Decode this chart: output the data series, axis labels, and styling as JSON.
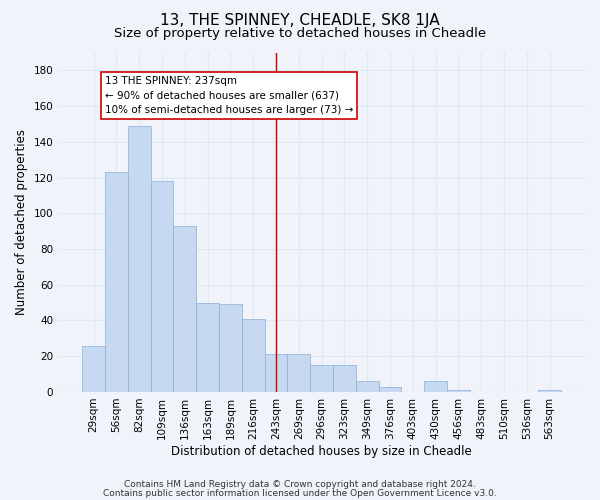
{
  "title": "13, THE SPINNEY, CHEADLE, SK8 1JA",
  "subtitle": "Size of property relative to detached houses in Cheadle",
  "xlabel": "Distribution of detached houses by size in Cheadle",
  "ylabel": "Number of detached properties",
  "bar_color": "#c6d9f0",
  "bar_edge_color": "#8bafd4",
  "categories": [
    "29sqm",
    "56sqm",
    "82sqm",
    "109sqm",
    "136sqm",
    "163sqm",
    "189sqm",
    "216sqm",
    "243sqm",
    "269sqm",
    "296sqm",
    "323sqm",
    "349sqm",
    "376sqm",
    "403sqm",
    "430sqm",
    "456sqm",
    "483sqm",
    "510sqm",
    "536sqm",
    "563sqm"
  ],
  "values": [
    26,
    123,
    149,
    118,
    93,
    50,
    49,
    41,
    21,
    21,
    15,
    15,
    6,
    3,
    0,
    6,
    1,
    0,
    0,
    0,
    1
  ],
  "vline_x": 8,
  "vline_color": "#cc0000",
  "ylim": [
    0,
    190
  ],
  "yticks": [
    0,
    20,
    40,
    60,
    80,
    100,
    120,
    140,
    160,
    180
  ],
  "annotation_title": "13 THE SPINNEY: 237sqm",
  "annotation_line1": "← 90% of detached houses are smaller (637)",
  "annotation_line2": "10% of semi-detached houses are larger (73) →",
  "footer1": "Contains HM Land Registry data © Crown copyright and database right 2024.",
  "footer2": "Contains public sector information licensed under the Open Government Licence v3.0.",
  "background_color": "#f0f4fa",
  "grid_color": "#dde8f5",
  "title_fontsize": 11,
  "subtitle_fontsize": 9.5,
  "axis_label_fontsize": 8.5,
  "tick_fontsize": 7.5,
  "footer_fontsize": 6.5
}
